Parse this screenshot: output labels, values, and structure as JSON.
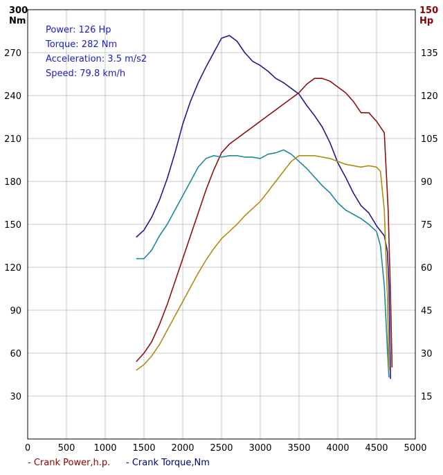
{
  "info": {
    "power": "Power: 126 Hp",
    "torque": "Torque: 282 Nm",
    "acceleration": "Acceleration: 3.5 m/s2",
    "speed": "Speed: 79.8 km/h"
  },
  "legend": {
    "power": "- Crank Power,h.p.",
    "torque": "- Crank Torque,Nm"
  },
  "colors": {
    "power": "#8b1010",
    "torque": "#1a1a8e",
    "series_teal": "#1a8a9a",
    "series_gold": "#b08a10",
    "grid": "#c8c8c8",
    "axis": "#000000",
    "left_unit": "#000000",
    "right_unit": "#8b0000"
  },
  "chart_data": {
    "type": "line",
    "xlabel": "",
    "ylabel_left": "Nm",
    "ylabel_right": "Hp",
    "left_top_label": "300",
    "right_top_label": "150",
    "xlim": [
      0,
      5000
    ],
    "ylim_left": [
      0,
      300
    ],
    "ylim_right": [
      0,
      150
    ],
    "x_ticks": [
      0,
      500,
      1000,
      1500,
      2000,
      2500,
      3000,
      3500,
      4000,
      4500,
      5000
    ],
    "y_ticks_left": [
      30,
      60,
      90,
      120,
      150,
      180,
      210,
      240,
      270
    ],
    "y_ticks_right": [
      15,
      30,
      45,
      60,
      75,
      90,
      105,
      120,
      135
    ],
    "grid": true,
    "legend_position": "bottom-left",
    "series": [
      {
        "name": "Crank Torque,Nm",
        "color_key": "torque",
        "axis": "left",
        "x": [
          1400,
          1500,
          1600,
          1700,
          1800,
          1900,
          2000,
          2100,
          2200,
          2300,
          2400,
          2500,
          2600,
          2700,
          2800,
          2900,
          3000,
          3100,
          3200,
          3300,
          3400,
          3500,
          3600,
          3700,
          3800,
          3900,
          4000,
          4100,
          4200,
          4300,
          4400,
          4500,
          4600,
          4640,
          4660,
          4680
        ],
        "y": [
          141,
          146,
          155,
          167,
          182,
          200,
          220,
          236,
          249,
          260,
          270,
          280,
          282,
          278,
          270,
          264,
          261,
          257,
          252,
          249,
          245,
          241,
          233,
          226,
          218,
          207,
          193,
          183,
          172,
          163,
          158,
          149,
          142,
          131,
          107,
          42
        ]
      },
      {
        "name": "Crank Power,h.p.",
        "color_key": "power",
        "axis": "right",
        "x": [
          1400,
          1500,
          1600,
          1700,
          1800,
          1900,
          2000,
          2100,
          2200,
          2300,
          2400,
          2500,
          2600,
          2700,
          2800,
          2900,
          3000,
          3100,
          3200,
          3300,
          3400,
          3500,
          3600,
          3700,
          3800,
          3900,
          4000,
          4100,
          4200,
          4300,
          4400,
          4500,
          4600,
          4650,
          4680,
          4700
        ],
        "y": [
          27,
          30,
          34,
          40,
          47,
          55,
          63,
          71,
          79,
          87,
          94,
          100,
          103,
          105,
          107,
          109,
          111,
          113,
          115,
          117,
          119,
          121,
          124,
          126,
          126,
          125,
          123,
          121,
          118,
          114,
          114,
          111,
          107,
          80,
          50,
          25
        ]
      },
      {
        "name": "",
        "color_key": "series_teal",
        "axis": "left",
        "x": [
          1400,
          1500,
          1600,
          1700,
          1800,
          1900,
          2000,
          2100,
          2200,
          2300,
          2400,
          2500,
          2600,
          2700,
          2800,
          2900,
          3000,
          3100,
          3200,
          3300,
          3400,
          3500,
          3600,
          3700,
          3800,
          3900,
          4000,
          4100,
          4200,
          4300,
          4400,
          4500,
          4550,
          4600,
          4640,
          4660
        ],
        "y": [
          126,
          126,
          132,
          142,
          150,
          160,
          170,
          180,
          190,
          196,
          198,
          197,
          198,
          198,
          197,
          197,
          196,
          199,
          200,
          202,
          199,
          194,
          189,
          183,
          177,
          172,
          165,
          160,
          157,
          154,
          150,
          145,
          135,
          107,
          62,
          43
        ]
      },
      {
        "name": "",
        "color_key": "series_gold",
        "axis": "left",
        "x": [
          1400,
          1500,
          1600,
          1700,
          1800,
          1900,
          2000,
          2100,
          2200,
          2300,
          2400,
          2500,
          2600,
          2700,
          2800,
          2900,
          3000,
          3100,
          3200,
          3300,
          3400,
          3500,
          3600,
          3700,
          3800,
          3900,
          4000,
          4100,
          4200,
          4300,
          4400,
          4500,
          4550,
          4600,
          4640,
          4660
        ],
        "y": [
          48,
          52,
          58,
          66,
          76,
          86,
          96,
          106,
          116,
          125,
          133,
          140,
          145,
          150,
          156,
          161,
          166,
          173,
          180,
          187,
          194,
          198,
          198,
          198,
          197,
          196,
          194,
          192,
          191,
          190,
          191,
          190,
          187,
          160,
          100,
          48
        ]
      }
    ]
  }
}
